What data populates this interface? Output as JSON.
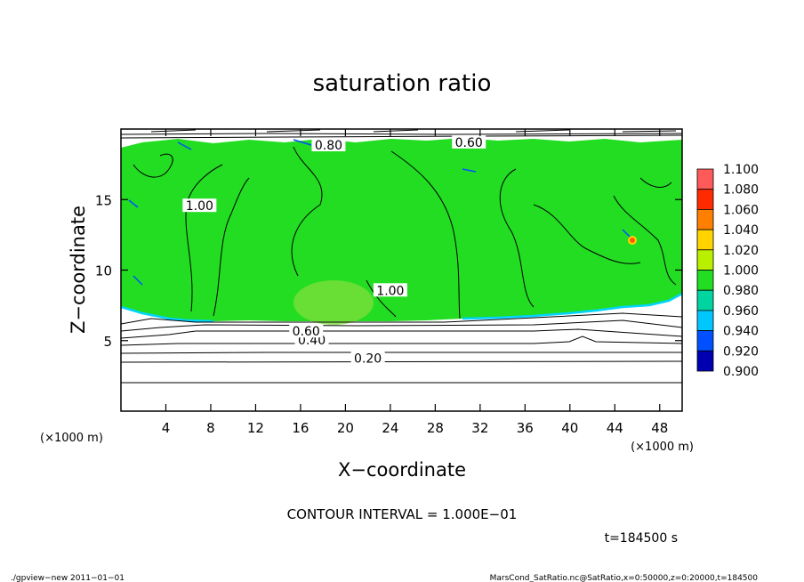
{
  "chart_data": {
    "type": "heatmap",
    "title": "saturation ratio",
    "xlabel": "X−coordinate",
    "ylabel": "Z−coordinate",
    "x_unit": "(×1000 m)",
    "y_unit": "(×1000 m)",
    "xlim": [
      0,
      50
    ],
    "ylim": [
      0,
      20
    ],
    "xticks": [
      4,
      8,
      12,
      16,
      20,
      24,
      28,
      32,
      36,
      40,
      44,
      48
    ],
    "yticks": [
      5,
      10,
      15
    ],
    "colorbar": {
      "levels": [
        "1.100",
        "1.080",
        "1.060",
        "1.040",
        "1.020",
        "1.000",
        "0.980",
        "0.960",
        "0.940",
        "0.920",
        "0.900"
      ],
      "colors": [
        "#ff8c8c",
        "#ff5a5a",
        "#ff2a00",
        "#ff7f00",
        "#ffd400",
        "#b9f000",
        "#22dd22",
        "#00d4a0",
        "#00c8ff",
        "#0050ff",
        "#0000b0",
        "#5a00b8"
      ]
    },
    "contour_labels": [
      {
        "text": "0.20",
        "x": 22,
        "z": 3.7
      },
      {
        "text": "0.40",
        "x": 17,
        "z": 5.0
      },
      {
        "text": "0.60",
        "x": 16.5,
        "z": 5.6
      },
      {
        "text": "1.00",
        "x": 7,
        "z": 14.5
      },
      {
        "text": "1.00",
        "x": 24,
        "z": 8.5
      },
      {
        "text": "0.60",
        "x": 31,
        "z": 19.0
      },
      {
        "text": "0.80",
        "x": 18.5,
        "z": 18.8
      }
    ],
    "contour_interval": "CONTOUR INTERVAL = 1.000E−01",
    "time": "t=184500 s",
    "grid": false
  },
  "footer": {
    "left": "./gpview−new  2011−01−01",
    "right": "MarsCond_SatRatio.nc@SatRatio,x=0:50000,z=0:20000,t=184500"
  }
}
